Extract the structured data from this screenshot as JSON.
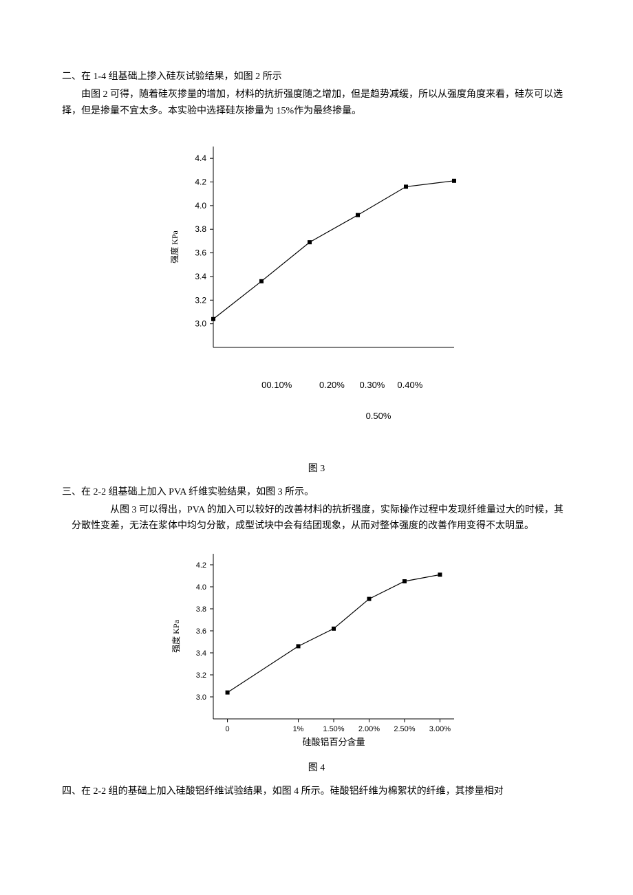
{
  "section2": {
    "heading": "二、在 1-4 组基础上掺入硅灰试验结果，如图 2 所示",
    "para": "由图 2 可得，随着硅灰掺量的增加，材料的抗折强度随之增加，但是趋势减缓，所以从强度角度来看，硅灰可以选择，但是掺量不宜太多。本实验中选择硅灰掺量为 15%作为最终掺量。"
  },
  "figure3_caption": "图 3",
  "chart3": {
    "type": "line",
    "ylabel": "强度 KPa",
    "ylabel_fontsize": 12,
    "ylim": [
      2.8,
      4.5
    ],
    "yticks": [
      3.0,
      3.2,
      3.4,
      3.6,
      3.8,
      4.0,
      4.2,
      4.4
    ],
    "xvalues": [
      0,
      0.1,
      0.2,
      0.3,
      0.4,
      0.5
    ],
    "points": [
      3.04,
      3.36,
      3.69,
      3.92,
      4.16,
      4.21
    ],
    "xlabels_line1": "00.10%           0.20%      0.30%     0.40%",
    "xlabels_line2": "0.50%",
    "line_color": "#000000",
    "marker_color": "#000000",
    "marker_size": 6,
    "background_color": "#ffffff",
    "axis_color": "#000000",
    "tick_font_family": "Arial, sans-serif",
    "tick_fontsize": 12
  },
  "section3": {
    "heading": "三、在 2-2 组基础上加入 PVA 纤维实验结果，如图 3 所示。",
    "para": "从图 3 可以得出，PVA 的加入可以较好的改善材料的抗折强度，实际操作过程中发现纤维量过大的时候，其分散性变差，无法在浆体中均匀分散，成型试块中会有结团现象，从而对整体强度的改善作用变得不太明显。"
  },
  "figure4_caption": "图 4",
  "chart4": {
    "type": "line",
    "ylabel": "强度 KPa",
    "ylabel_fontsize": 12,
    "ylim": [
      2.8,
      4.3
    ],
    "yticks": [
      3.0,
      3.2,
      3.4,
      3.6,
      3.8,
      4.0,
      4.2
    ],
    "xvalues": [
      0,
      1,
      1.5,
      2,
      2.5,
      3
    ],
    "xlabels": [
      "0",
      "1%",
      "1.50%",
      "2.00%",
      "2.50%",
      "3.00%"
    ],
    "xlabel": "硅酸铝百分含量",
    "xlabel_fontsize": 13,
    "points": [
      3.04,
      3.46,
      3.62,
      3.89,
      4.05,
      4.11
    ],
    "line_color": "#000000",
    "marker_color": "#000000",
    "marker_size": 6,
    "background_color": "#ffffff",
    "axis_color": "#000000",
    "tick_font_family": "Arial, sans-serif",
    "tick_fontsize": 11
  },
  "section4": {
    "heading": "四、在 2-2 组的基础上加入硅酸铝纤维试验结果，如图 4 所示。硅酸铝纤维为棉絮状的纤维，其掺量相对"
  }
}
